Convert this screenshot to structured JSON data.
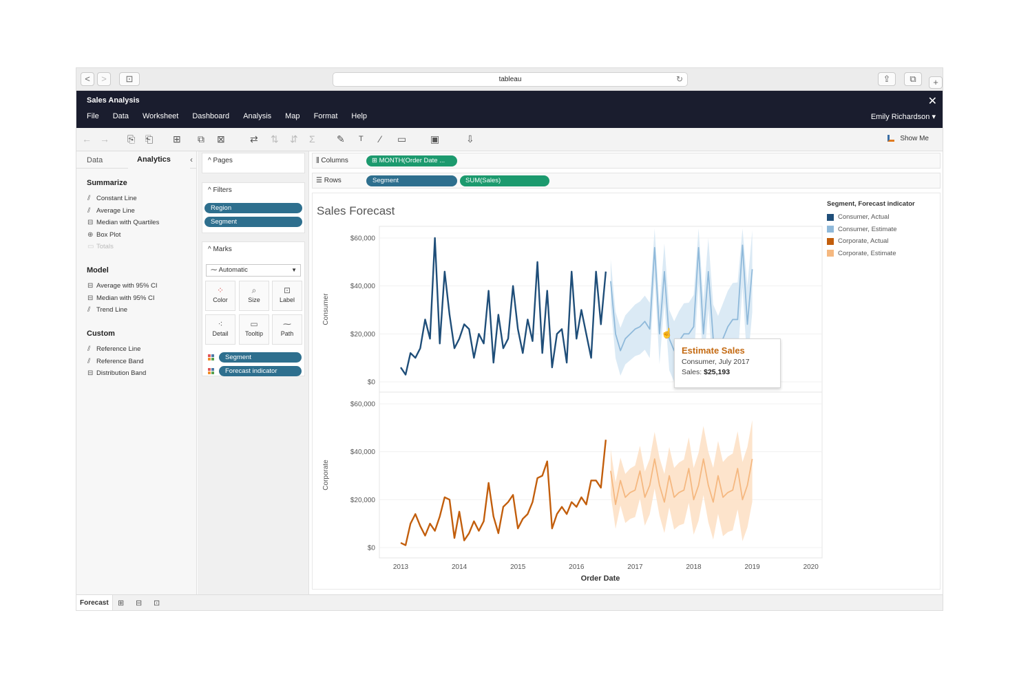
{
  "browser": {
    "url": "tableau",
    "nav_back": "<",
    "nav_fwd": ">",
    "sidebar_icon": "⊡",
    "reload": "↻",
    "share": "⇪",
    "tabs_icon": "⧉",
    "new_tab": "+"
  },
  "app": {
    "title": "Sales Analysis",
    "user": "Emily Richardson ▾",
    "close": "✕"
  },
  "menu": [
    "File",
    "Data",
    "Worksheet",
    "Dashboard",
    "Analysis",
    "Map",
    "Format",
    "Help"
  ],
  "toolbar": {
    "show_me": "Show Me"
  },
  "left_pane": {
    "tab_data": "Data",
    "tab_analytics": "Analytics",
    "collapse": "‹",
    "summarize": {
      "title": "Summarize",
      "items": [
        "Constant Line",
        "Average Line",
        "Median with Quartiles",
        "Box Plot",
        "Totals"
      ]
    },
    "model": {
      "title": "Model",
      "items": [
        "Average with 95% CI",
        "Median with 95% CI",
        "Trend Line"
      ]
    },
    "custom": {
      "title": "Custom",
      "items": [
        "Reference Line",
        "Reference Band",
        "Distribution Band"
      ]
    }
  },
  "shelves": {
    "pages": "^ Pages",
    "filters": "^ Filters",
    "filter_pills": [
      "Region",
      "Segment"
    ],
    "marks": "^ Marks",
    "mark_type": "Automatic",
    "mark_buttons": [
      "Color",
      "Size",
      "Label",
      "Detail",
      "Tooltip",
      "Path"
    ],
    "mark_pills": [
      "Segment",
      "Forecast indicator"
    ],
    "columns_label": "Columns",
    "rows_label": "Rows",
    "columns_pill": "⊞ MONTH(Order Date ...",
    "rows_pills": [
      "Segment",
      "SUM(Sales)"
    ]
  },
  "chart": {
    "title": "Sales Forecast",
    "legend_title": "Segment, Forecast indicator",
    "legend": [
      {
        "label": "Consumer, Actual",
        "color": "#1f4e79"
      },
      {
        "label": "Consumer, Estimate",
        "color": "#8fb9da"
      },
      {
        "label": "Corporate, Actual",
        "color": "#c25e0c"
      },
      {
        "label": "Corporate, Estimate",
        "color": "#f5b880"
      }
    ],
    "xlabel": "Order Date",
    "tooltip": {
      "title": "Estimate Sales",
      "sub": "Consumer, July 2017",
      "sales_label": "Sales:",
      "sales_value": "$25,193"
    }
  },
  "sheets": {
    "active": "Forecast"
  },
  "chart_data": {
    "type": "line",
    "x_ticks": [
      "2013",
      "2014",
      "2015",
      "2016",
      "2017",
      "2018",
      "2019",
      "2020"
    ],
    "y_ticks": [
      "$0",
      "$20,000",
      "$40,000",
      "$60,000"
    ],
    "ylim": [
      0,
      65000
    ],
    "x_start": 2013.0,
    "panes": [
      {
        "name": "Consumer",
        "series": [
          {
            "name": "Consumer, Actual",
            "values": [
              6000,
              3000,
              12000,
              10000,
              14000,
              26000,
              18000,
              60000,
              16000,
              46000,
              28000,
              14000,
              18000,
              24000,
              22000,
              10000,
              20000,
              16000,
              38000,
              8000,
              28000,
              14000,
              18000,
              40000,
              22000,
              12000,
              26000,
              17000,
              50000,
              12000,
              38000,
              6000,
              20000,
              22000,
              8000,
              46000,
              18000,
              30000,
              20000,
              10000,
              46000,
              24000,
              46000
            ]
          },
          {
            "name": "Consumer, Estimate",
            "values": [
              42000,
              20000,
              13000,
              18000,
              20000,
              22000,
              23000,
              25193,
              22000,
              56000,
              20000,
              46000,
              18000,
              13000,
              17000,
              20000,
              20000,
              23000,
              56000,
              20000,
              46000,
              18000,
              13000,
              18000,
              23000,
              26000,
              26000,
              57000,
              24000,
              47000
            ]
          }
        ]
      },
      {
        "name": "Corporate",
        "series": [
          {
            "name": "Corporate, Actual",
            "values": [
              2000,
              1000,
              10000,
              14000,
              9000,
              5000,
              10000,
              7000,
              13000,
              21000,
              20000,
              4000,
              15000,
              3000,
              6000,
              11000,
              7000,
              11000,
              27000,
              13000,
              6000,
              17000,
              19000,
              22000,
              8000,
              12000,
              14000,
              19000,
              29000,
              30000,
              36000,
              8000,
              14000,
              17000,
              14000,
              19000,
              17000,
              21000,
              18000,
              28000,
              28000,
              25000,
              45000
            ]
          },
          {
            "name": "Corporate, Estimate",
            "values": [
              32000,
              18000,
              28000,
              21000,
              23000,
              24000,
              32000,
              21000,
              26000,
              37000,
              26000,
              19000,
              30000,
              21000,
              23000,
              24000,
              33000,
              20000,
              26000,
              37000,
              26000,
              19000,
              30000,
              21000,
              23000,
              24000,
              33000,
              20000,
              26000,
              37000
            ]
          }
        ]
      }
    ]
  }
}
